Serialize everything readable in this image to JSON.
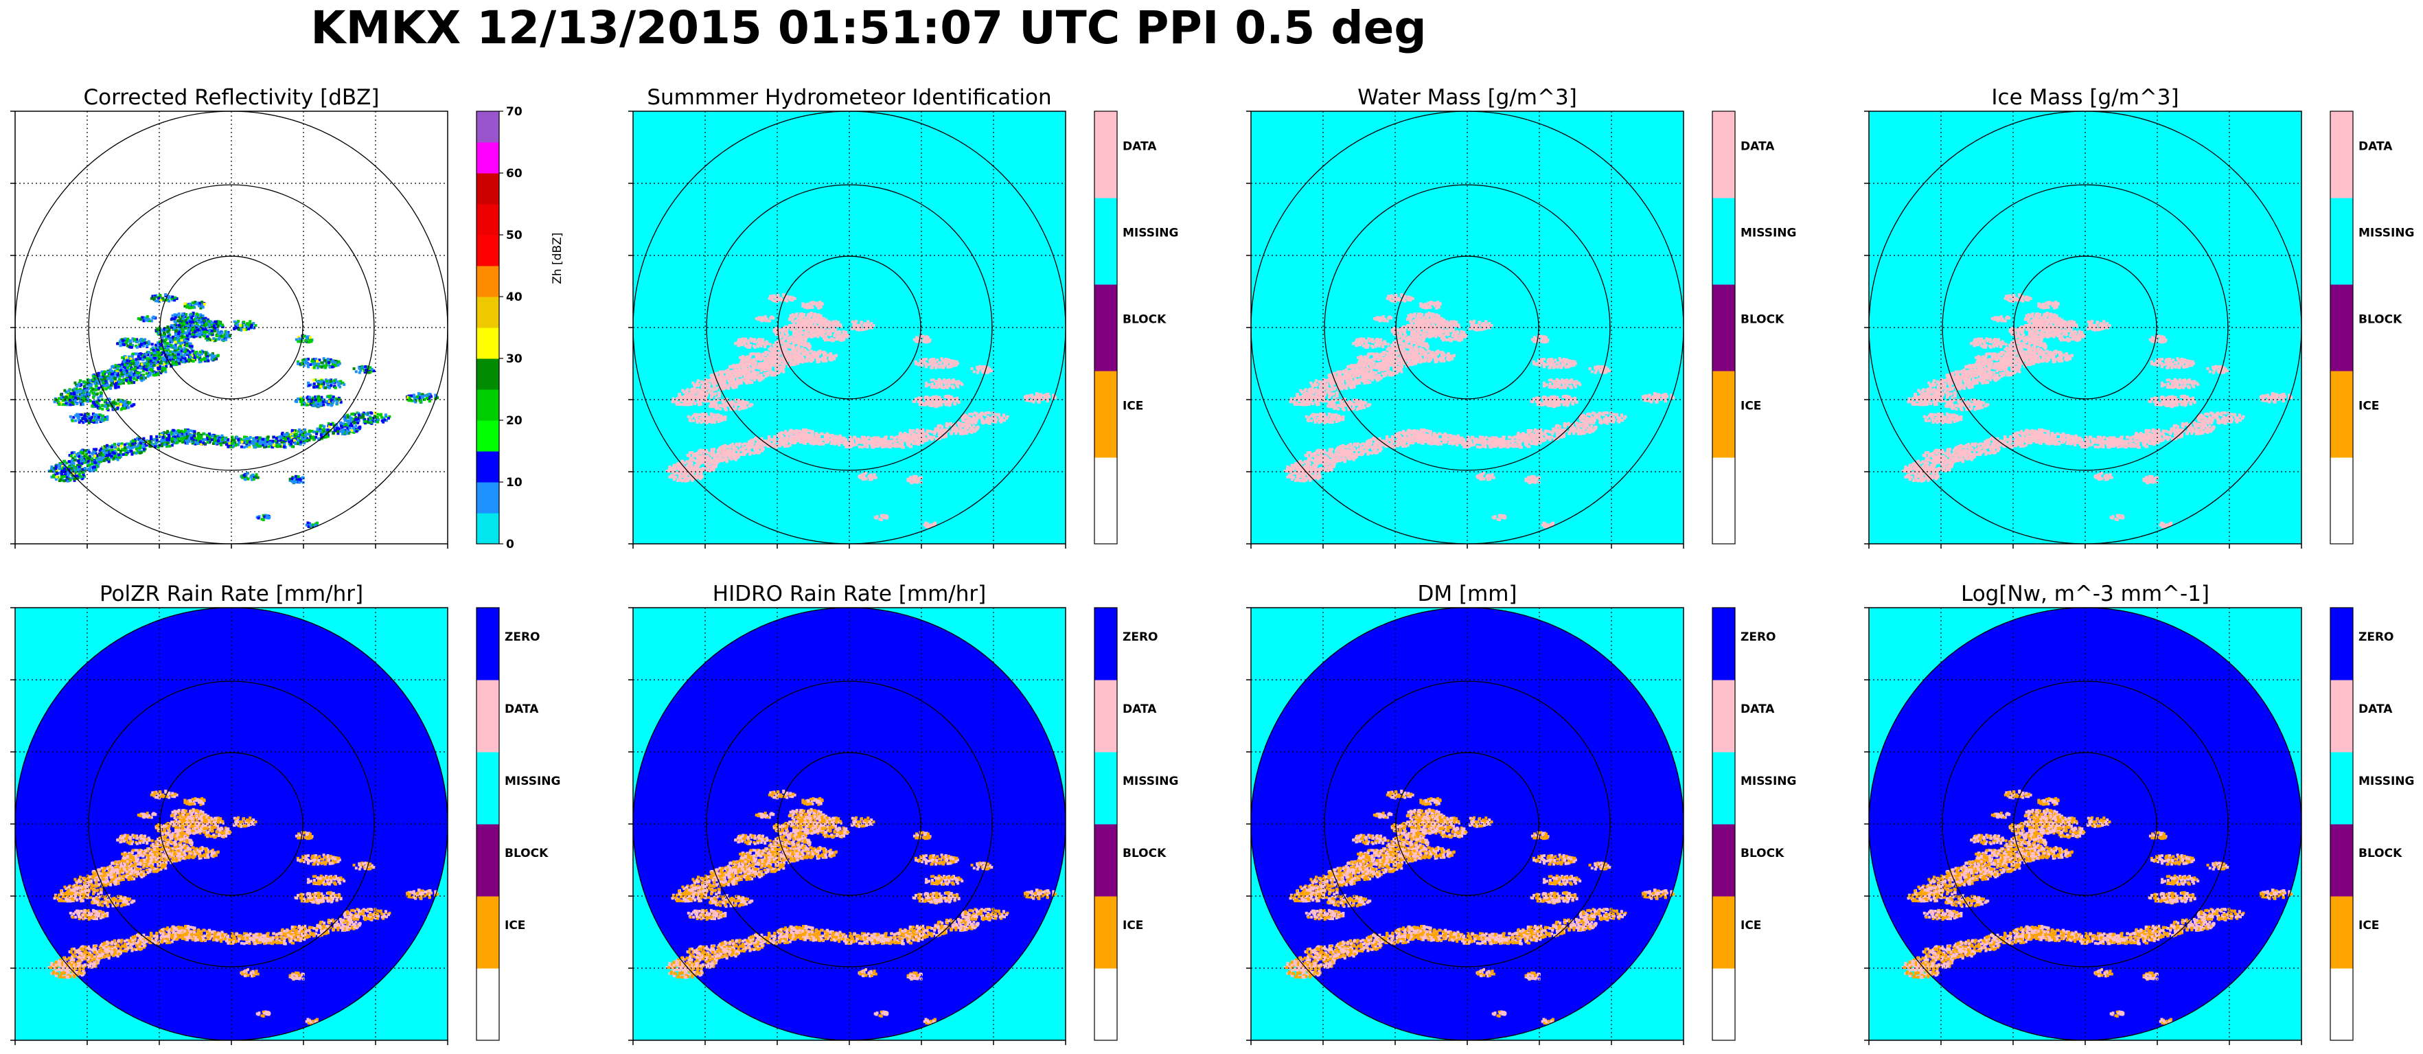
{
  "figure": {
    "suptitle": "KMKX 12/13/2015 01:51:07 UTC PPI 0.5 deg"
  },
  "colors": {
    "missing": "#00ffff",
    "data": "#ffc0cb",
    "block": "#800080",
    "ice": "#ffa500",
    "zero": "#0000ff",
    "blank": "#ffffff"
  },
  "chart_data": [
    {
      "type": "heatmap",
      "title": "Corrected Reflectivity [dBZ]",
      "background": "none",
      "colorbar": {
        "kind": "continuous",
        "label": "Zh [dBZ]",
        "ticks": [
          "0",
          "10",
          "20",
          "30",
          "40",
          "50",
          "60",
          "70"
        ],
        "range": [
          0,
          70
        ],
        "colors": [
          "#00e5ee",
          "#1e90ff",
          "#0000ff",
          "#00ff00",
          "#00cd00",
          "#008b00",
          "#ffff00",
          "#eec900",
          "#ff8c00",
          "#ff0000",
          "#ee0000",
          "#cd0000",
          "#ff00ff",
          "#9a55cd"
        ]
      }
    },
    {
      "type": "heatmap",
      "title": "Summmer Hydrometeor Identification",
      "background": "missing",
      "colorbar": {
        "kind": "categorical",
        "labels": [
          "",
          "ICE",
          "BLOCK",
          "MISSING",
          "DATA"
        ],
        "colors": [
          "blank",
          "ice",
          "block",
          "missing",
          "data"
        ]
      }
    },
    {
      "type": "heatmap",
      "title": "Water Mass [g/m^3]",
      "background": "missing",
      "colorbar": {
        "kind": "categorical",
        "labels": [
          "",
          "ICE",
          "BLOCK",
          "MISSING",
          "DATA"
        ],
        "colors": [
          "blank",
          "ice",
          "block",
          "missing",
          "data"
        ]
      }
    },
    {
      "type": "heatmap",
      "title": "Ice Mass [g/m^3]",
      "background": "missing",
      "colorbar": {
        "kind": "categorical",
        "labels": [
          "",
          "ICE",
          "BLOCK",
          "MISSING",
          "DATA"
        ],
        "colors": [
          "blank",
          "ice",
          "block",
          "missing",
          "data"
        ]
      }
    },
    {
      "type": "heatmap",
      "title": "PolZR Rain Rate [mm/hr]",
      "background": "zero-disk",
      "colorbar": {
        "kind": "categorical",
        "labels": [
          "",
          "ICE",
          "BLOCK",
          "MISSING",
          "DATA",
          "ZERO"
        ],
        "colors": [
          "blank",
          "ice",
          "block",
          "missing",
          "data",
          "zero"
        ]
      }
    },
    {
      "type": "heatmap",
      "title": "HIDRO Rain Rate [mm/hr]",
      "background": "zero-disk",
      "colorbar": {
        "kind": "categorical",
        "labels": [
          "",
          "ICE",
          "BLOCK",
          "MISSING",
          "DATA",
          "ZERO"
        ],
        "colors": [
          "blank",
          "ice",
          "block",
          "missing",
          "data",
          "zero"
        ]
      }
    },
    {
      "type": "heatmap",
      "title": "DM [mm]",
      "background": "zero-disk",
      "colorbar": {
        "kind": "categorical",
        "labels": [
          "",
          "ICE",
          "BLOCK",
          "MISSING",
          "DATA",
          "ZERO"
        ],
        "colors": [
          "blank",
          "ice",
          "block",
          "missing",
          "data",
          "zero"
        ]
      }
    },
    {
      "type": "heatmap",
      "title": "Log[Nw, m^-3 mm^-1]",
      "background": "zero-disk",
      "colorbar": {
        "kind": "categorical",
        "labels": [
          "",
          "ICE",
          "BLOCK",
          "MISSING",
          "DATA",
          "ZERO"
        ],
        "colors": [
          "blank",
          "ice",
          "block",
          "missing",
          "data",
          "zero"
        ]
      }
    }
  ]
}
